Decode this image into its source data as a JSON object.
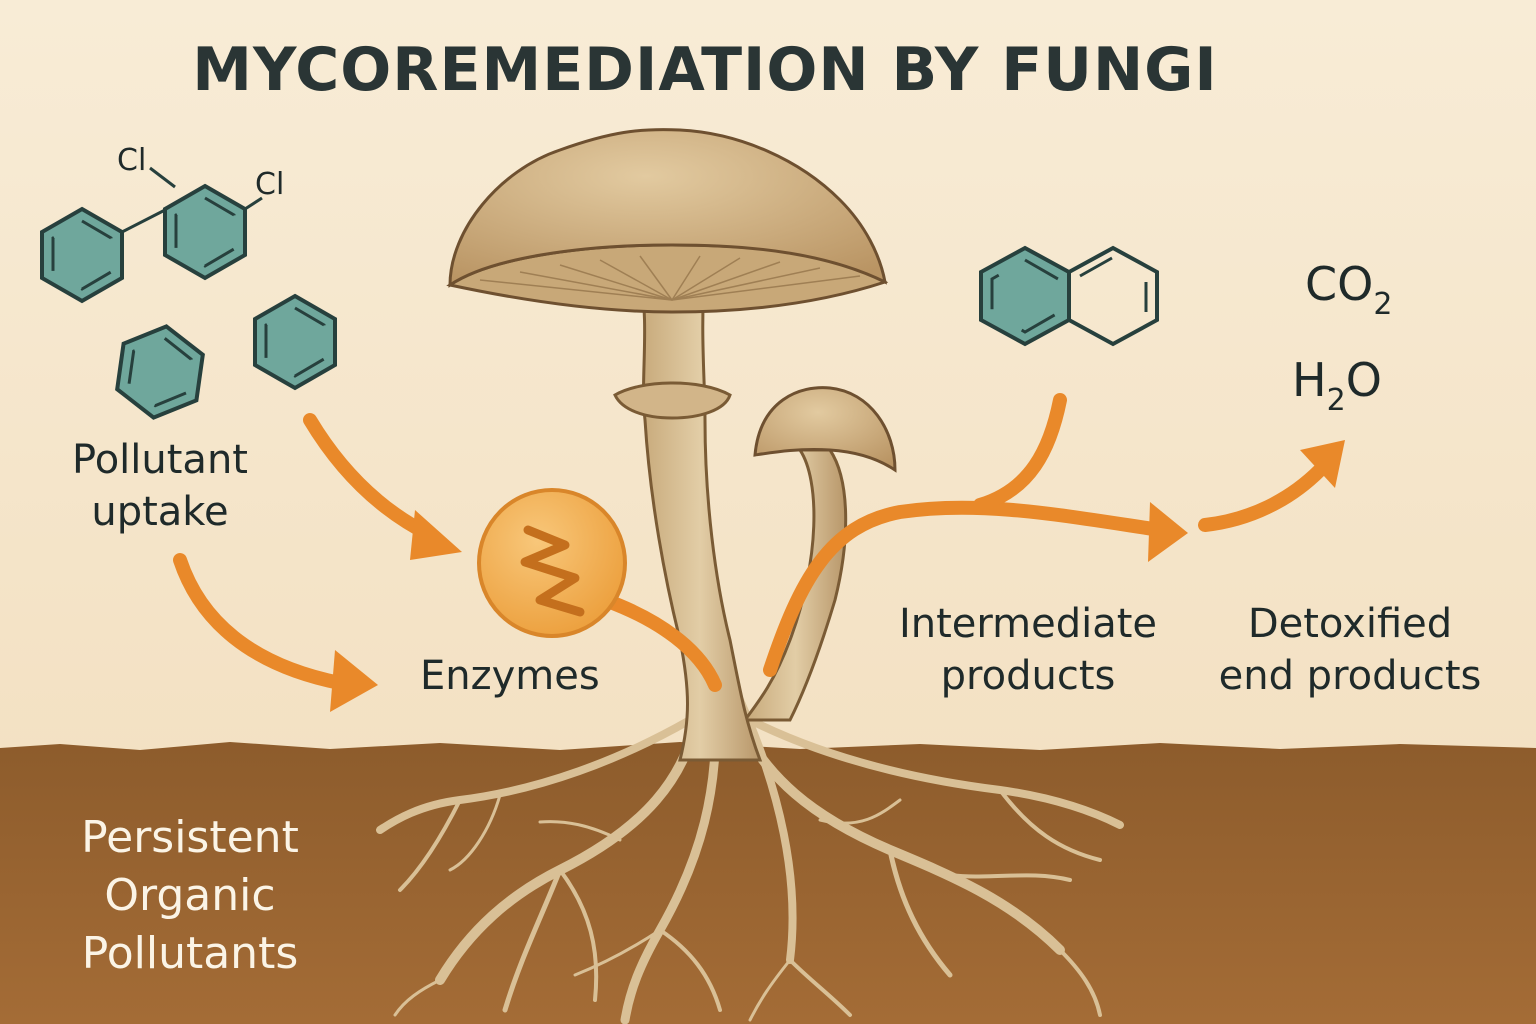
{
  "title": "MYCOREMEDIATION BY FUNGI",
  "labels": {
    "pollutant_uptake_1": "Pollutant",
    "pollutant_uptake_2": "uptake",
    "enzymes": "Enzymes",
    "intermediate_1": "Intermediate",
    "intermediate_2": "products",
    "detoxified_1": "Detoxified",
    "detoxified_2": "end products",
    "pop_1": "Persistent",
    "pop_2": "Organic",
    "pop_3": "Pollutants"
  },
  "chemistry": {
    "cl_1": "Cl",
    "cl_2": "Cl",
    "co2_main": "CO",
    "co2_sub": "2",
    "h2o_h": "H",
    "h2o_sub": "2",
    "h2o_o": "O"
  },
  "colors": {
    "background": "#f6e9d2",
    "soil": "#8a5a2b",
    "arrow": "#e9892a",
    "molecule": "#6fa79c",
    "mushroom": "#d8bf92",
    "enzyme": "#f0a94b"
  },
  "icons": {
    "enzyme": "lightning-bolt-icon",
    "molecules": "benzene-ring-icon"
  }
}
